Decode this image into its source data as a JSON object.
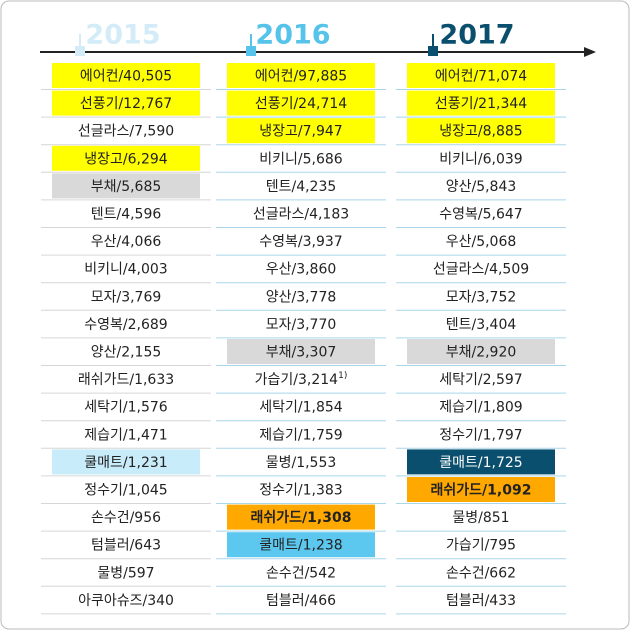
{
  "columns": [
    {
      "year": "2015",
      "color": "#d3ecf7",
      "items": [
        {
          "text": "에어컨/40,505",
          "color": "#ffff00"
        },
        {
          "text": "선풍기/12,767",
          "color": "#ffff00"
        },
        {
          "text": "선글라스/7,590"
        },
        {
          "text": "냉장고/6,294",
          "color": "#ffff00"
        },
        {
          "text": "부채/5,685",
          "color": "#d9d9d9"
        },
        {
          "text": "텐트/4,596"
        },
        {
          "text": "우산/4,066"
        },
        {
          "text": "비키니/4,003"
        },
        {
          "text": "모자/3,769"
        },
        {
          "text": "수영복/2,689"
        },
        {
          "text": "양산/2,155"
        },
        {
          "text": "래쉬가드/1,633"
        },
        {
          "text": "세탁기/1,576"
        },
        {
          "text": "제습기/1,471"
        },
        {
          "text": "쿨매트/1,231",
          "color": "#c9ecfa"
        },
        {
          "text": "정수기/1,045"
        },
        {
          "text": "손수건/956"
        },
        {
          "text": "텀블러/643"
        },
        {
          "text": "물병/597"
        },
        {
          "text": "아쿠아슈즈/340"
        }
      ]
    },
    {
      "year": "2016",
      "color": "#55c3ea",
      "items": [
        {
          "text": "에어컨/97,885",
          "color": "#ffff00"
        },
        {
          "text": "선풍기/24,714",
          "color": "#ffff00"
        },
        {
          "text": "냉장고/7,947",
          "color": "#ffff00"
        },
        {
          "text": "비키니/5,686"
        },
        {
          "text": "텐트/4,235"
        },
        {
          "text": "선글라스/4,183"
        },
        {
          "text": "수영복/3,937"
        },
        {
          "text": "우산/3,860"
        },
        {
          "text": "양산/3,778"
        },
        {
          "text": "모자/3,770"
        },
        {
          "text": "부채/3,307",
          "color": "#d9d9d9"
        },
        {
          "text": "가습기/3,214",
          "note": "1)"
        },
        {
          "text": "세탁기/1,854"
        },
        {
          "text": "제습기/1,759"
        },
        {
          "text": "물병/1,553"
        },
        {
          "text": "정수기/1,383"
        },
        {
          "text": "래쉬가드/1,308",
          "color": "#ffa800",
          "bold": true
        },
        {
          "text": "쿨매트/1,238",
          "color": "#5cc8f0"
        },
        {
          "text": "손수건/542"
        },
        {
          "text": "텀블러/466"
        }
      ]
    },
    {
      "year": "2017",
      "color": "#0b4f6e",
      "items": [
        {
          "text": "에어컨/71,074",
          "color": "#ffff00"
        },
        {
          "text": "선풍기/21,344",
          "color": "#ffff00"
        },
        {
          "text": "냉장고/8,885",
          "color": "#ffff00"
        },
        {
          "text": "비키니/6,039"
        },
        {
          "text": "양산/5,843"
        },
        {
          "text": "수영복/5,647"
        },
        {
          "text": "우산/5,068"
        },
        {
          "text": "선글라스/4,509"
        },
        {
          "text": "모자/3,752"
        },
        {
          "text": "텐트/3,404"
        },
        {
          "text": "부채/2,920",
          "color": "#d9d9d9"
        },
        {
          "text": "세탁기/2,597"
        },
        {
          "text": "제습기/1,809"
        },
        {
          "text": "정수기/1,797"
        },
        {
          "text": "쿨매트/1,725",
          "color": "#0b4f6e",
          "text_color": "#ffffff"
        },
        {
          "text": "래쉬가드/1,092",
          "color": "#ffa800",
          "bold": true
        },
        {
          "text": "물병/851"
        },
        {
          "text": "가습기/795"
        },
        {
          "text": "손수건/662"
        },
        {
          "text": "텀블러/433"
        }
      ]
    }
  ]
}
